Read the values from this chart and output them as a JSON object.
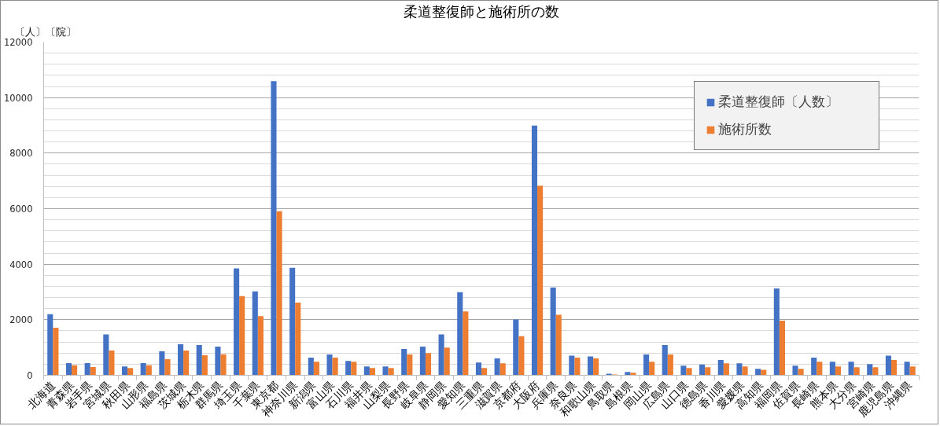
{
  "chart_data": {
    "type": "bar",
    "title": "柔道整復師と施術所の数",
    "ylabel": "〔人〕〔院〕",
    "categories": [
      "北海道",
      "青森県",
      "岩手県",
      "宮城県",
      "秋田県",
      "山形県",
      "福島県",
      "茨城県",
      "栃木県",
      "群馬県",
      "埼玉県",
      "千葉県",
      "東京都",
      "神奈川県",
      "新潟県",
      "富山県",
      "石川県",
      "福井県",
      "山梨県",
      "長野県",
      "岐阜県",
      "静岡県",
      "愛知県",
      "三重県",
      "滋賀県",
      "京都府",
      "大阪府",
      "兵庫県",
      "奈良県",
      "和歌山県",
      "鳥取県",
      "島根県",
      "岡山県",
      "広島県",
      "山口県",
      "徳島県",
      "香川県",
      "愛媛県",
      "高知県",
      "福岡県",
      "佐賀県",
      "長崎県",
      "熊本県",
      "大分県",
      "宮崎県",
      "鹿児島県",
      "沖縄県"
    ],
    "series": [
      {
        "name": "柔道整復師〔人数〕",
        "color": "#4472c4",
        "values": [
          2200,
          440,
          440,
          1470,
          320,
          440,
          860,
          1120,
          1090,
          1030,
          3850,
          3020,
          10590,
          3870,
          640,
          750,
          520,
          320,
          320,
          950,
          1030,
          1470,
          2990,
          460,
          610,
          2010,
          8990,
          3160,
          710,
          680,
          60,
          120,
          750,
          1090,
          350,
          390,
          550,
          430,
          230,
          3130,
          350,
          640,
          490,
          490,
          400,
          710,
          490
        ]
      },
      {
        "name": "施術所数",
        "color": "#ed7d31",
        "values": [
          1710,
          360,
          300,
          890,
          260,
          360,
          580,
          890,
          720,
          760,
          2850,
          2130,
          5910,
          2620,
          490,
          640,
          490,
          260,
          260,
          750,
          800,
          1000,
          2300,
          260,
          430,
          1410,
          6830,
          2180,
          640,
          610,
          30,
          90,
          490,
          750,
          260,
          290,
          430,
          320,
          200,
          1970,
          230,
          490,
          320,
          290,
          290,
          550,
          320
        ]
      }
    ],
    "ylim": [
      0,
      12000
    ],
    "yticks": [
      0,
      2000,
      4000,
      6000,
      8000,
      10000,
      12000
    ],
    "grid": "y",
    "legend": "top right"
  }
}
